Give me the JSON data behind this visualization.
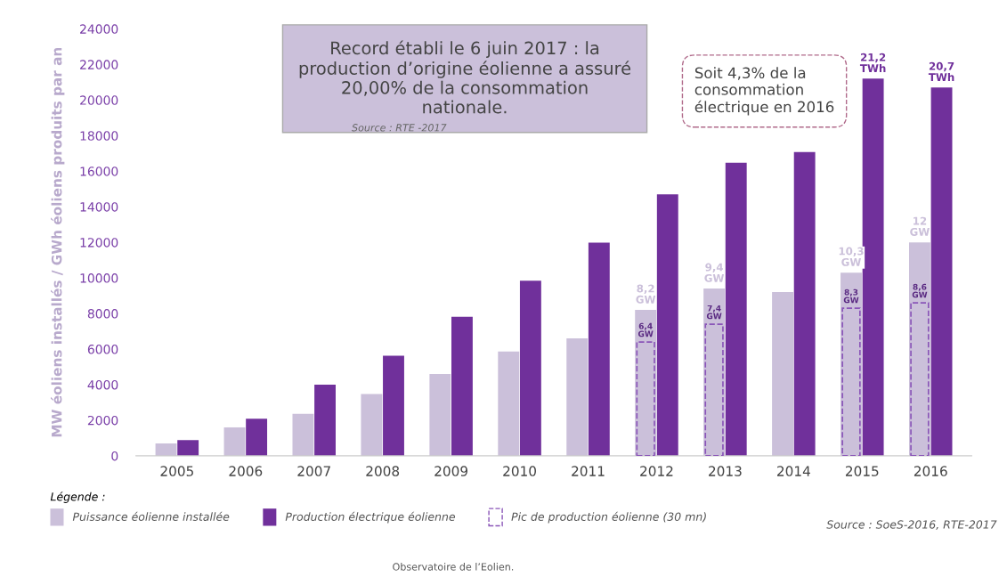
{
  "chart_data": {
    "type": "bar",
    "categories": [
      "2005",
      "2006",
      "2007",
      "2008",
      "2009",
      "2010",
      "2011",
      "2012",
      "2013",
      "2014",
      "2015",
      "2016"
    ],
    "ylabel": "MW éoliens installés / GWh éoliens produits par an",
    "legend_title": "Légende :",
    "legend": "bottom",
    "series": [
      {
        "name": "Puissance éolienne installée",
        "color": "#cbc0da",
        "values": [
          700,
          1600,
          2360,
          3470,
          4600,
          5860,
          6600,
          8200,
          9400,
          9200,
          10300,
          12000
        ]
      },
      {
        "name": "Production électrique éolienne",
        "color": "#70309b",
        "values": [
          880,
          2080,
          4000,
          5630,
          7820,
          9840,
          11980,
          14700,
          16470,
          17080,
          21200,
          20700
        ]
      },
      {
        "name": "Pic de production éolienne (30 mn)",
        "color": "#8a55b8",
        "line_style": "dashed",
        "values": [
          null,
          null,
          null,
          null,
          null,
          null,
          null,
          6400,
          7400,
          null,
          8300,
          8600
        ]
      }
    ],
    "ylim": [
      0,
      24000
    ],
    "yticks": [
      0,
      2000,
      4000,
      6000,
      8000,
      10000,
      12000,
      14000,
      16000,
      18000,
      20000,
      22000,
      24000
    ],
    "grid": false,
    "annotations": [
      "Record établi le 6 juin 2017 : la production d’origine éolienne a assuré 20,00% de la consommation nationale.",
      "Source : RTE -2017",
      "Soit 4,3% de la consommation électrique en 2016",
      "Source : SoeS-2016, RTE-2017",
      "Observatoire de l’Eolien.",
      {
        "text": "8,2 GW",
        "x": "2012",
        "y": 8200
      },
      {
        "text": "9,4 GW",
        "x": "2013",
        "y": 9400
      },
      {
        "text": "10,3 GW",
        "x": "2015",
        "y": 10300
      },
      {
        "text": "12 GW",
        "x": "2016",
        "y": 12000
      },
      {
        "text": "21,2 TWh",
        "x": "2015",
        "y": 21200
      },
      {
        "text": "20,7 TWh",
        "x": "2016",
        "y": 20700
      },
      {
        "text": "6,4 GW",
        "x": "2012",
        "y": 6400
      },
      {
        "text": "7,4 GW",
        "x": "2013",
        "y": 7400
      },
      {
        "text": "8,3 GW",
        "x": "2015",
        "y": 8300
      },
      {
        "text": "8,6 GW",
        "x": "2016",
        "y": 8600
      }
    ]
  }
}
